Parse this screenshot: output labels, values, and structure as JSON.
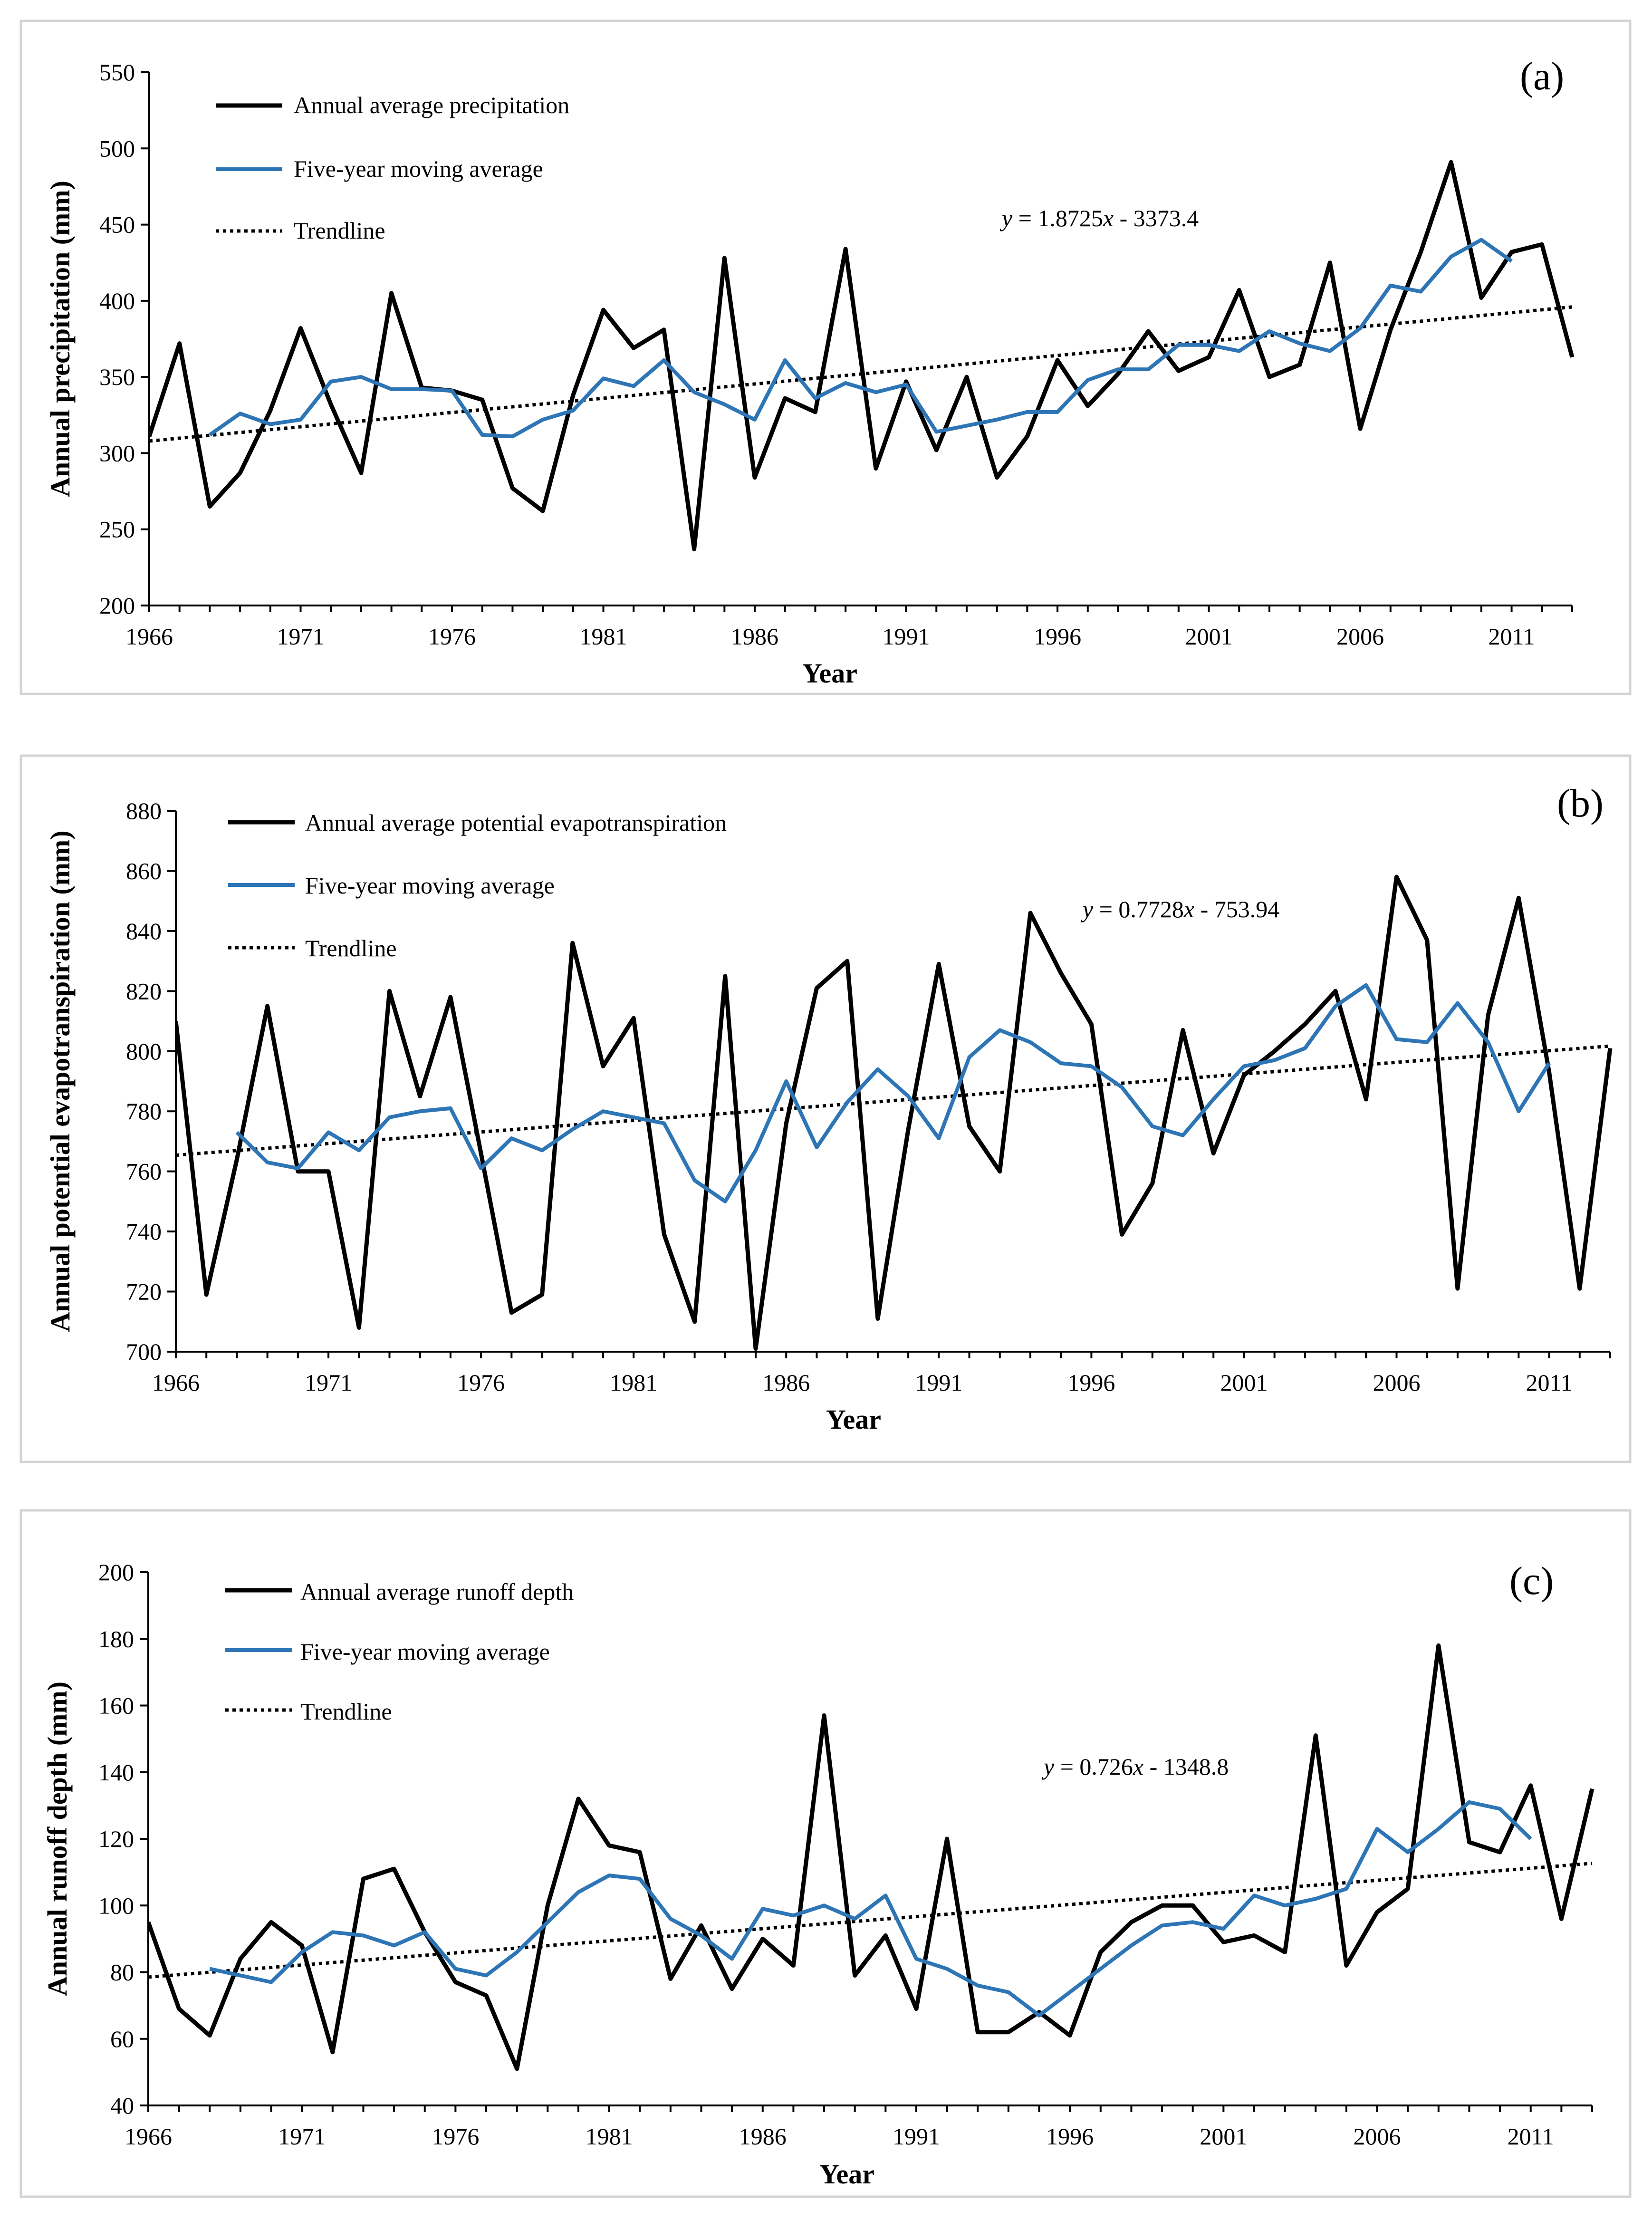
{
  "colors": {
    "annual": "#000000",
    "moving_average": "#2E75B6",
    "trendline": "#000000"
  },
  "chart_data": [
    {
      "type": "line",
      "panel_label": "(a)",
      "xlabel": "Year",
      "ylabel": "Annual  precipitation (mm)",
      "xlim": [
        1966,
        2013
      ],
      "ylim": [
        200,
        550
      ],
      "yticks": [
        200,
        250,
        300,
        350,
        400,
        450,
        500,
        550
      ],
      "xticks": [
        1966,
        1971,
        1976,
        1981,
        1986,
        1991,
        1996,
        2001,
        2006,
        2011
      ],
      "equation": "y = 1.8725x - 3373.4",
      "legend": [
        "Annual average precipitation",
        "Five-year moving average",
        "Trendline"
      ],
      "trendline": {
        "slope": 1.8725,
        "intercept": -3373.4
      },
      "series": [
        {
          "name": "Annual average precipitation",
          "x": [
            1966,
            1967,
            1968,
            1969,
            1970,
            1971,
            1972,
            1973,
            1974,
            1975,
            1976,
            1977,
            1978,
            1979,
            1980,
            1981,
            1982,
            1983,
            1984,
            1985,
            1986,
            1987,
            1988,
            1989,
            1990,
            1991,
            1992,
            1993,
            1994,
            1995,
            1996,
            1997,
            1998,
            1999,
            2000,
            2001,
            2002,
            2003,
            2004,
            2005,
            2006,
            2007,
            2008,
            2009,
            2010,
            2011,
            2012,
            2013
          ],
          "values": [
            311,
            372,
            265,
            287,
            328,
            382,
            332,
            287,
            405,
            343,
            341,
            335,
            277,
            262,
            338,
            394,
            369,
            381,
            237,
            428,
            284,
            336,
            327,
            434,
            290,
            347,
            302,
            350,
            284,
            311,
            361,
            331,
            352,
            380,
            354,
            363,
            407,
            350,
            358,
            425,
            316,
            381,
            432,
            491,
            402,
            432,
            437,
            363
          ]
        },
        {
          "name": "Five-year moving average",
          "x": [
            1968,
            1969,
            1970,
            1971,
            1972,
            1973,
            1974,
            1975,
            1976,
            1977,
            1978,
            1979,
            1980,
            1981,
            1982,
            1983,
            1984,
            1985,
            1986,
            1987,
            1988,
            1989,
            1990,
            1991,
            1992,
            1993,
            1994,
            1995,
            1996,
            1997,
            1998,
            1999,
            2000,
            2001,
            2002,
            2003,
            2004,
            2005,
            2006,
            2007,
            2008,
            2009,
            2010,
            2011
          ],
          "values": [
            312,
            326,
            319,
            322,
            347,
            350,
            342,
            342,
            341,
            312,
            311,
            322,
            328,
            349,
            344,
            361,
            340,
            332,
            322,
            361,
            336,
            346,
            340,
            345,
            314,
            318,
            322,
            327,
            327,
            348,
            355,
            355,
            371,
            371,
            367,
            380,
            372,
            367,
            382,
            410,
            406,
            429,
            440,
            426
          ]
        }
      ]
    },
    {
      "type": "line",
      "panel_label": "(b)",
      "xlabel": "Year",
      "ylabel": "Annual potential evapotranspiration (mm)",
      "xlim": [
        1966,
        2013
      ],
      "ylim": [
        700,
        880
      ],
      "yticks": [
        700,
        720,
        740,
        760,
        780,
        800,
        820,
        840,
        860,
        880
      ],
      "xticks": [
        1966,
        1971,
        1976,
        1981,
        1986,
        1991,
        1996,
        2001,
        2006,
        2011
      ],
      "equation": "y = 0.7728x - 753.94",
      "legend": [
        "Annual average potential evapotranspiration",
        "Five-year moving average",
        "Trendline"
      ],
      "trendline": {
        "slope": 0.7728,
        "intercept": -753.94
      },
      "series": [
        {
          "name": "Annual average potential evapotranspiration",
          "x": [
            1966,
            1967,
            1968,
            1969,
            1970,
            1971,
            1972,
            1973,
            1974,
            1975,
            1976,
            1977,
            1978,
            1979,
            1980,
            1981,
            1982,
            1983,
            1984,
            1985,
            1986,
            1987,
            1988,
            1989,
            1990,
            1991,
            1992,
            1993,
            1994,
            1995,
            1996,
            1997,
            1998,
            1999,
            2000,
            2001,
            2002,
            2003,
            2004,
            2005,
            2006,
            2007,
            2008,
            2009,
            2010,
            2011,
            2012,
            2013
          ],
          "values": [
            810,
            719,
            764,
            815,
            760,
            760,
            708,
            820,
            785,
            818,
            766,
            713,
            719,
            836,
            795,
            811,
            739,
            710,
            825,
            701,
            776,
            821,
            830,
            711,
            774,
            829,
            775,
            760,
            846,
            826,
            809,
            739,
            756,
            807,
            766,
            792,
            800,
            809,
            820,
            784,
            858,
            837,
            721,
            812,
            851,
            793,
            721,
            801
          ]
        },
        {
          "name": "Five-year moving average",
          "x": [
            1968,
            1969,
            1970,
            1971,
            1972,
            1973,
            1974,
            1975,
            1976,
            1977,
            1978,
            1979,
            1980,
            1981,
            1982,
            1983,
            1984,
            1985,
            1986,
            1987,
            1988,
            1989,
            1990,
            1991,
            1992,
            1993,
            1994,
            1995,
            1996,
            1997,
            1998,
            1999,
            2000,
            2001,
            2002,
            2003,
            2004,
            2005,
            2006,
            2007,
            2008,
            2009,
            2010,
            2011
          ],
          "values": [
            773,
            763,
            761,
            773,
            767,
            778,
            780,
            781,
            761,
            771,
            767,
            774,
            780,
            778,
            776,
            757,
            750,
            767,
            790,
            768,
            783,
            794,
            785,
            771,
            798,
            807,
            803,
            796,
            795,
            788,
            775,
            772,
            784,
            795,
            797,
            801,
            815,
            822,
            804,
            803,
            816,
            803,
            780,
            796
          ]
        }
      ]
    },
    {
      "type": "line",
      "panel_label": "(c)",
      "xlabel": "Year",
      "ylabel": "Annual runoff depth  (mm)",
      "xlim": [
        1966,
        2013
      ],
      "ylim": [
        40,
        200
      ],
      "yticks": [
        40,
        60,
        80,
        100,
        120,
        140,
        160,
        180,
        200
      ],
      "xticks": [
        1966,
        1971,
        1976,
        1981,
        1986,
        1991,
        1996,
        2001,
        2006,
        2011
      ],
      "equation": "y = 0.726x - 1348.8",
      "legend": [
        "Annual average runoff depth",
        "Five-year moving average",
        "Trendline"
      ],
      "trendline": {
        "slope": 0.726,
        "intercept": -1348.8
      },
      "series": [
        {
          "name": "Annual average runoff depth",
          "x": [
            1966,
            1967,
            1968,
            1969,
            1970,
            1971,
            1972,
            1973,
            1974,
            1975,
            1976,
            1977,
            1978,
            1979,
            1980,
            1981,
            1982,
            1983,
            1984,
            1985,
            1986,
            1987,
            1988,
            1989,
            1990,
            1991,
            1992,
            1993,
            1994,
            1995,
            1996,
            1997,
            1998,
            1999,
            2000,
            2001,
            2002,
            2003,
            2004,
            2005,
            2006,
            2007,
            2008,
            2009,
            2010,
            2011,
            2012,
            2013
          ],
          "values": [
            95,
            69,
            61,
            84,
            95,
            88,
            56,
            108,
            111,
            92,
            77,
            73,
            51,
            100,
            132,
            118,
            116,
            78,
            94,
            75,
            90,
            82,
            157,
            79,
            91,
            69,
            120,
            62,
            62,
            68,
            61,
            86,
            95,
            100,
            100,
            89,
            91,
            86,
            151,
            82,
            98,
            105,
            178,
            119,
            116,
            136,
            96,
            135
          ]
        },
        {
          "name": "Five-year moving average",
          "x": [
            1968,
            1969,
            1970,
            1971,
            1972,
            1973,
            1974,
            1975,
            1976,
            1977,
            1978,
            1979,
            1980,
            1981,
            1982,
            1983,
            1984,
            1985,
            1986,
            1987,
            1988,
            1989,
            1990,
            1991,
            1992,
            1993,
            1994,
            1995,
            1996,
            1997,
            1998,
            1999,
            2000,
            2001,
            2002,
            2003,
            2004,
            2005,
            2006,
            2007,
            2008,
            2009,
            2010,
            2011
          ],
          "values": [
            81,
            79,
            77,
            86,
            92,
            91,
            88,
            92,
            81,
            79,
            86,
            95,
            104,
            109,
            108,
            96,
            91,
            84,
            99,
            97,
            100,
            96,
            103,
            84,
            81,
            76,
            74,
            67,
            74,
            81,
            88,
            94,
            95,
            93,
            103,
            100,
            102,
            105,
            123,
            116,
            123,
            131,
            129,
            120
          ]
        }
      ]
    }
  ]
}
